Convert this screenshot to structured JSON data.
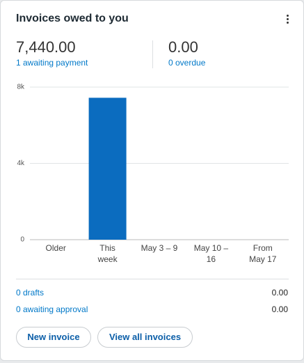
{
  "header": {
    "title": "Invoices owed to you"
  },
  "summary": [
    {
      "amount": "7,440.00",
      "link": "1 awaiting payment"
    },
    {
      "amount": "0.00",
      "link": "0 overdue"
    }
  ],
  "chart_data": {
    "type": "bar",
    "categories": [
      "Older",
      "This week",
      "May 3 – 9",
      "May 10 – 16",
      "From May 17"
    ],
    "values": [
      0,
      7440,
      0,
      0,
      0
    ],
    "color": "#0b6cbf",
    "ylim": [
      0,
      8000
    ],
    "yticks": [
      0,
      {
        "value": 4000,
        "label": "4k"
      },
      {
        "value": 8000,
        "label": "8k"
      }
    ],
    "grid": true
  },
  "rows": [
    {
      "label": "0 drafts",
      "amount": "0.00"
    },
    {
      "label": "0 awaiting approval",
      "amount": "0.00"
    }
  ],
  "buttons": [
    "New invoice",
    "View all invoices"
  ]
}
